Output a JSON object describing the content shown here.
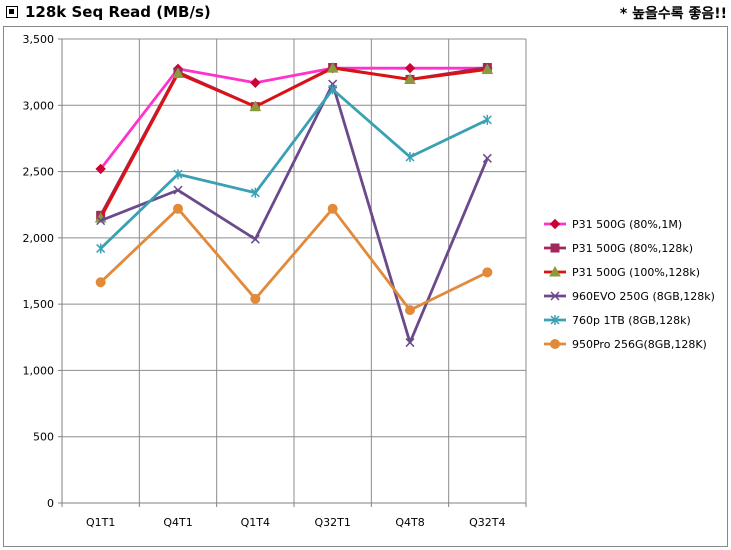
{
  "header": {
    "title": "128k Seq Read (MB/s)",
    "note": "* 높을수록 좋음!!"
  },
  "chart_data": {
    "type": "line",
    "title": "128k Seq Read (MB/s)",
    "categories": [
      "Q1T1",
      "Q4T1",
      "Q1T4",
      "Q32T1",
      "Q4T8",
      "Q32T4"
    ],
    "ylim": [
      0,
      3500
    ],
    "yticks": [
      0,
      500,
      1000,
      1500,
      2000,
      2500,
      3000,
      3500
    ],
    "ytick_labels": [
      "0",
      "500",
      "1,000",
      "1,500",
      "2,000",
      "2,500",
      "3,000",
      "3,500"
    ],
    "grid": true,
    "legend_position": "right",
    "series": [
      {
        "name": "P31 500G (80%,1M)",
        "color": "#ff33cc",
        "marker": "diamond",
        "marker_color": "#cc0033",
        "values": [
          2520,
          3275,
          3170,
          3280,
          3280,
          3280
        ]
      },
      {
        "name": "P31 500G (80%,128k)",
        "color": "#a0285a",
        "marker": "square",
        "marker_color": "#a0285a",
        "values": [
          2170,
          3250,
          2990,
          3285,
          3195,
          3285
        ]
      },
      {
        "name": "P31 500G (100%,128k)",
        "color": "#dd1111",
        "marker": "triangle",
        "marker_color": "#8a9a3c",
        "values": [
          2150,
          3240,
          2990,
          3280,
          3195,
          3270
        ]
      },
      {
        "name": "960EVO 250G (8GB,128k)",
        "color": "#6b4a8c",
        "marker": "x",
        "marker_color": "#6b4a8c",
        "values": [
          2130,
          2360,
          1990,
          3160,
          1210,
          2600
        ]
      },
      {
        "name": "760p 1TB (8GB,128k)",
        "color": "#3aa0b4",
        "marker": "asterisk",
        "marker_color": "#3aa0b4",
        "values": [
          1920,
          2480,
          2340,
          3120,
          2610,
          2890
        ]
      },
      {
        "name": "950Pro 256G(8GB,128K)",
        "color": "#e08a3a",
        "marker": "circle",
        "marker_color": "#e08a3a",
        "values": [
          1665,
          2220,
          1540,
          2220,
          1455,
          1740
        ]
      }
    ]
  }
}
